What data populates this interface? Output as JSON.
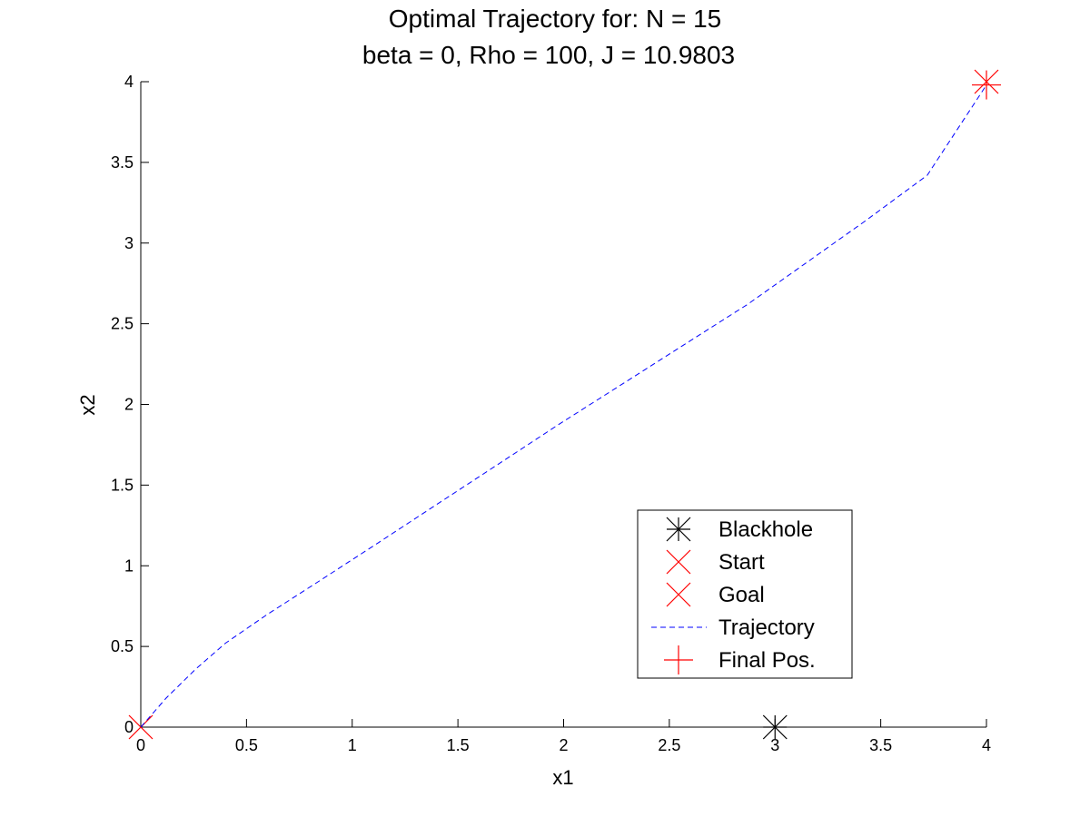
{
  "chart_data": {
    "type": "line",
    "title": "Optimal Trajectory for:  N = 15",
    "subtitle": "beta = 0, Rho = 100, J = 10.9803",
    "xlabel": "x1",
    "ylabel": "x2",
    "xlim": [
      0,
      4
    ],
    "ylim": [
      0,
      4
    ],
    "xticks": [
      "0",
      "0.5",
      "1",
      "1.5",
      "2",
      "2.5",
      "3",
      "3.5",
      "4"
    ],
    "yticks": [
      "0",
      "0.5",
      "1",
      "1.5",
      "2",
      "2.5",
      "3",
      "3.5",
      "4"
    ],
    "grid": false,
    "legend_position": "bottom-right",
    "series": [
      {
        "name": "Blackhole",
        "marker": "asterisk",
        "color": "#000000",
        "x": [
          3
        ],
        "y": [
          0
        ]
      },
      {
        "name": "Start",
        "marker": "x",
        "color": "#ff0000",
        "x": [
          0
        ],
        "y": [
          0
        ]
      },
      {
        "name": "Goal",
        "marker": "x",
        "color": "#ff0000",
        "x": [
          4
        ],
        "y": [
          4
        ]
      },
      {
        "name": "Trajectory",
        "style": "dashed",
        "color": "#0000ff",
        "x": [
          0,
          0.12,
          0.26,
          0.4,
          0.6,
          0.85,
          1.12,
          1.4,
          1.68,
          1.97,
          2.27,
          2.57,
          2.87,
          3.15,
          3.43,
          3.72,
          4.0
        ],
        "y": [
          0,
          0.18,
          0.36,
          0.52,
          0.7,
          0.91,
          1.14,
          1.38,
          1.62,
          1.87,
          2.12,
          2.37,
          2.62,
          2.88,
          3.14,
          3.42,
          3.98
        ]
      },
      {
        "name": "Final Pos.",
        "marker": "plus",
        "color": "#ff0000",
        "x": [
          4
        ],
        "y": [
          3.98
        ]
      }
    ]
  }
}
